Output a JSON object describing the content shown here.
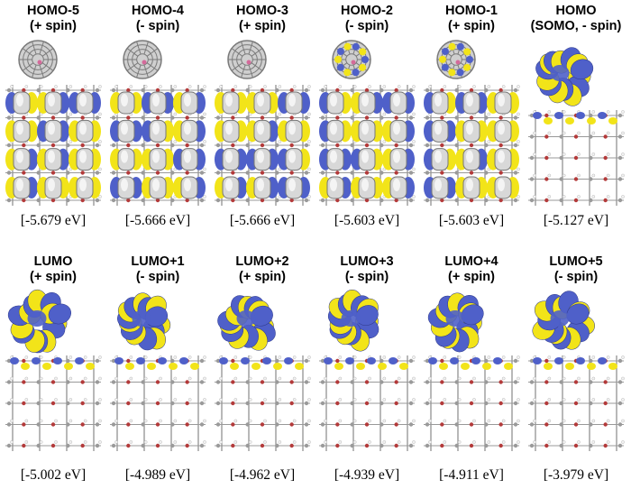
{
  "orbital_colors": {
    "positive_lobe": "#f2e419",
    "negative_lobe": "#4f60c9",
    "lattice_atom_carbon": "#9a9a9a",
    "lattice_atom_oxygen": "#b33a3a",
    "lattice_atom_hydrogen": "#f2f2f2",
    "fullerene": "#7a7a7a"
  },
  "panels": [
    {
      "name": "HOMO-5",
      "line1": "HOMO-5",
      "line2": "(+ spin)",
      "energy": "[-5.679 eV]",
      "density": "slab"
    },
    {
      "name": "HOMO-4",
      "line1": "HOMO-4",
      "line2": "(- spin)",
      "energy": "[-5.666 eV]",
      "density": "slab"
    },
    {
      "name": "HOMO-3",
      "line1": "HOMO-3",
      "line2": "(+ spin)",
      "energy": "[-5.666 eV]",
      "density": "slab"
    },
    {
      "name": "HOMO-2",
      "line1": "HOMO-2",
      "line2": "(- spin)",
      "energy": "[-5.603 eV]",
      "density": "slab-cage"
    },
    {
      "name": "HOMO-1",
      "line1": "HOMO-1",
      "line2": "(+ spin)",
      "energy": "[-5.603 eV]",
      "density": "slab-cage"
    },
    {
      "name": "HOMO",
      "line1": "HOMO",
      "line2": "(SOMO, - spin)",
      "energy": "[-5.127 eV]",
      "density": "cage"
    },
    {
      "name": "LUMO",
      "line1": "LUMO",
      "line2": "(+ spin)",
      "energy": "[-5.002 eV]",
      "density": "cage"
    },
    {
      "name": "LUMO+1",
      "line1": "LUMO+1",
      "line2": "(- spin)",
      "energy": "[-4.989 eV]",
      "density": "cage"
    },
    {
      "name": "LUMO+2",
      "line1": "LUMO+2",
      "line2": "(+ spin)",
      "energy": "[-4.962 eV]",
      "density": "cage"
    },
    {
      "name": "LUMO+3",
      "line1": "LUMO+3",
      "line2": "(- spin)",
      "energy": "[-4.939 eV]",
      "density": "cage"
    },
    {
      "name": "LUMO+4",
      "line1": "LUMO+4",
      "line2": "(+ spin)",
      "energy": "[-4.911 eV]",
      "density": "cage"
    },
    {
      "name": "LUMO+5",
      "line1": "LUMO+5",
      "line2": "(- spin)",
      "energy": "[-3.979 eV]",
      "density": "cage"
    }
  ]
}
